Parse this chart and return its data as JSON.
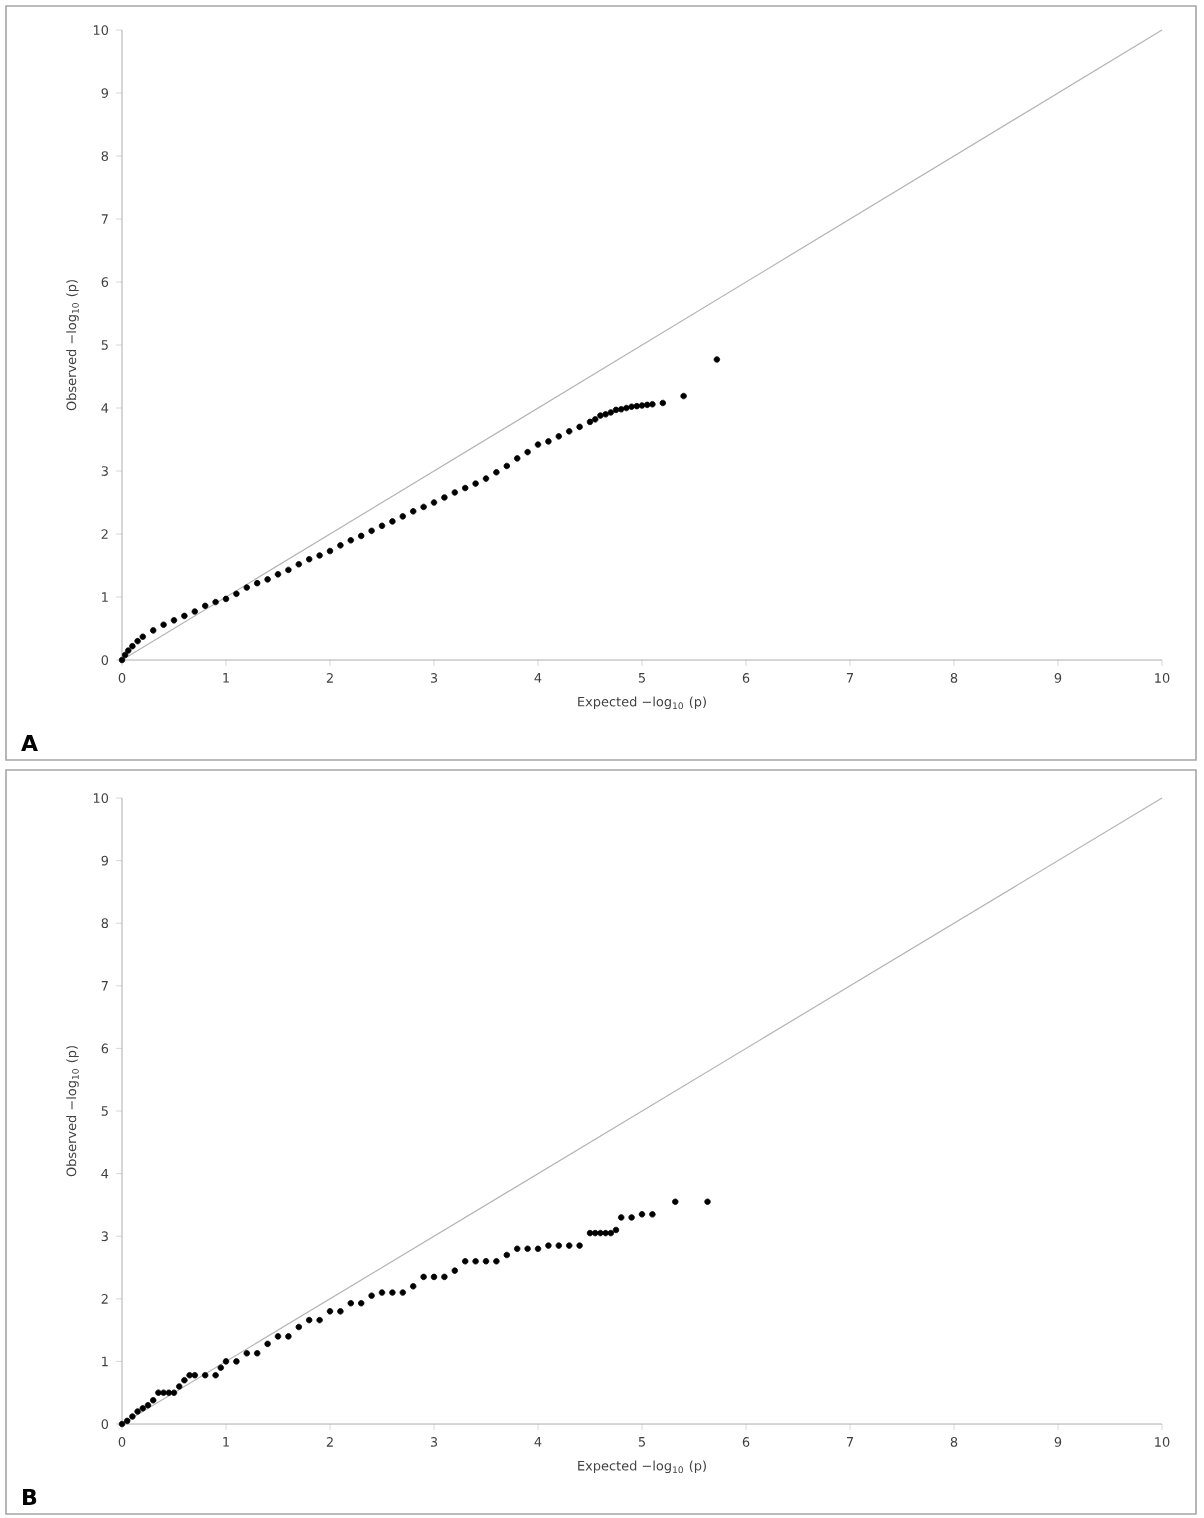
{
  "chart_data": [
    {
      "type": "scatter",
      "xlabel": "Expected −log$_{10}$ (p)",
      "ylabel": "Observed −log$_{10}$ (p)",
      "annotations": [
        "A"
      ],
      "xlim": [
        0,
        10
      ],
      "ylim": [
        0,
        10
      ],
      "xticks": [
        0,
        1,
        2,
        3,
        4,
        5,
        6,
        7,
        8,
        9,
        10
      ],
      "yticks": [
        0,
        1,
        2,
        3,
        4,
        5,
        6,
        7,
        8,
        9,
        10
      ],
      "series": [
        {
          "color": "#000000",
          "marker": "circle",
          "x": [
            0,
            0.03,
            0.06,
            0.1,
            0.15,
            0.2,
            0.3,
            0.4,
            0.5,
            0.6,
            0.7,
            0.8,
            0.9,
            1.0,
            1.1,
            1.2,
            1.3,
            1.4,
            1.5,
            1.6,
            1.7,
            1.8,
            1.9,
            2.0,
            2.1,
            2.2,
            2.3,
            2.4,
            2.5,
            2.6,
            2.7,
            2.8,
            2.9,
            3.0,
            3.1,
            3.2,
            3.3,
            3.4,
            3.5,
            3.6,
            3.7,
            3.8,
            3.9,
            4.0,
            4.1,
            4.2,
            4.3,
            4.4,
            4.5,
            4.55,
            4.6,
            4.65,
            4.7,
            4.75,
            4.8,
            4.85,
            4.9,
            4.95,
            5.0,
            5.05,
            5.1,
            5.2,
            5.4,
            5.72
          ],
          "values": [
            0,
            0.08,
            0.15,
            0.22,
            0.3,
            0.37,
            0.47,
            0.56,
            0.63,
            0.7,
            0.77,
            0.86,
            0.92,
            0.97,
            1.05,
            1.15,
            1.22,
            1.28,
            1.36,
            1.43,
            1.52,
            1.6,
            1.66,
            1.73,
            1.82,
            1.9,
            1.97,
            2.05,
            2.13,
            2.2,
            2.28,
            2.36,
            2.43,
            2.5,
            2.58,
            2.66,
            2.73,
            2.8,
            2.88,
            2.98,
            3.08,
            3.2,
            3.3,
            3.42,
            3.47,
            3.55,
            3.63,
            3.7,
            3.78,
            3.82,
            3.88,
            3.9,
            3.93,
            3.97,
            3.98,
            4.0,
            4.02,
            4.03,
            4.04,
            4.05,
            4.06,
            4.08,
            4.19,
            4.77
          ]
        },
        {
          "type": "line",
          "color": "#b4b4b4",
          "x": [
            0,
            10
          ],
          "values": [
            0,
            10
          ]
        }
      ]
    },
    {
      "type": "scatter",
      "xlabel": "Expected −log$_{10}$ (p)",
      "ylabel": "Observed −log$_{10}$ (p)",
      "annotations": [
        "B"
      ],
      "xlim": [
        0,
        10
      ],
      "ylim": [
        0,
        10
      ],
      "xticks": [
        0,
        1,
        2,
        3,
        4,
        5,
        6,
        7,
        8,
        9,
        10
      ],
      "yticks": [
        0,
        1,
        2,
        3,
        4,
        5,
        6,
        7,
        8,
        9,
        10
      ],
      "series": [
        {
          "color": "#000000",
          "marker": "circle",
          "x": [
            0,
            0.05,
            0.1,
            0.15,
            0.2,
            0.25,
            0.3,
            0.35,
            0.4,
            0.45,
            0.5,
            0.55,
            0.6,
            0.65,
            0.7,
            0.8,
            0.9,
            0.95,
            1.0,
            1.1,
            1.2,
            1.3,
            1.4,
            1.5,
            1.6,
            1.7,
            1.8,
            1.9,
            2.0,
            2.1,
            2.2,
            2.3,
            2.4,
            2.5,
            2.6,
            2.7,
            2.8,
            2.9,
            3.0,
            3.1,
            3.2,
            3.3,
            3.4,
            3.5,
            3.6,
            3.7,
            3.8,
            3.9,
            4.0,
            4.1,
            4.2,
            4.3,
            4.4,
            4.5,
            4.55,
            4.6,
            4.65,
            4.7,
            4.75,
            4.8,
            4.9,
            5.0,
            5.1,
            5.32,
            5.63
          ],
          "values": [
            0,
            0.05,
            0.12,
            0.2,
            0.25,
            0.3,
            0.38,
            0.5,
            0.5,
            0.5,
            0.5,
            0.6,
            0.7,
            0.78,
            0.78,
            0.78,
            0.78,
            0.9,
            1.0,
            1.0,
            1.13,
            1.13,
            1.28,
            1.4,
            1.4,
            1.55,
            1.66,
            1.66,
            1.8,
            1.8,
            1.93,
            1.93,
            2.05,
            2.1,
            2.1,
            2.1,
            2.2,
            2.35,
            2.35,
            2.35,
            2.45,
            2.6,
            2.6,
            2.6,
            2.6,
            2.7,
            2.8,
            2.8,
            2.8,
            2.85,
            2.85,
            2.85,
            2.85,
            3.05,
            3.05,
            3.05,
            3.05,
            3.05,
            3.1,
            3.3,
            3.3,
            3.35,
            3.35,
            3.55,
            3.55
          ]
        },
        {
          "type": "line",
          "color": "#b4b4b4",
          "x": [
            0,
            10
          ],
          "values": [
            0,
            10
          ]
        }
      ]
    }
  ]
}
